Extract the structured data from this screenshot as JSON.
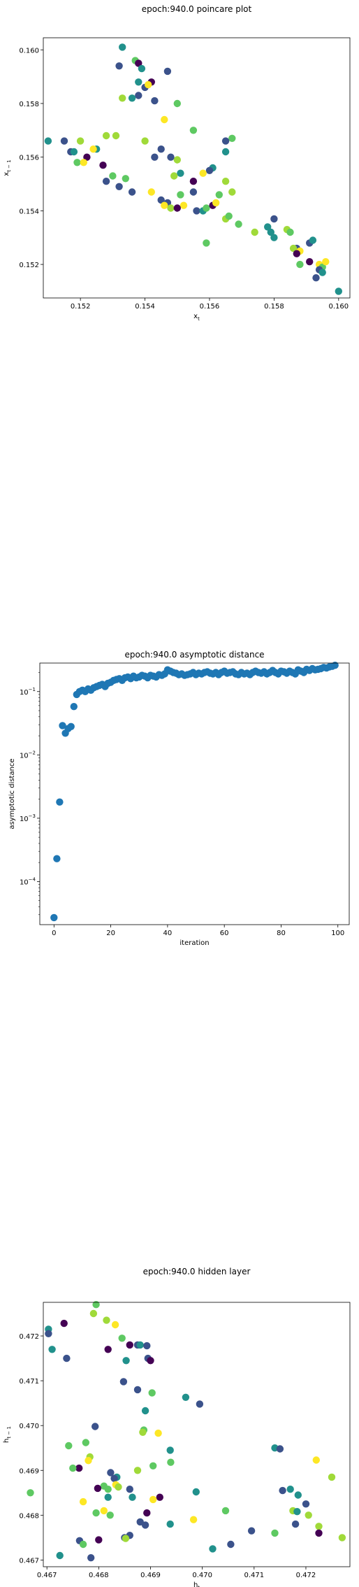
{
  "palette": [
    "#440154",
    "#3b528b",
    "#21918c",
    "#5ec962",
    "#a0da39",
    "#fde725"
  ],
  "pointColor": "#1f77b4",
  "chart_data": [
    {
      "type": "scatter",
      "title": "epoch:940.0 poincare plot",
      "xlabel_base": "x",
      "xlabel_sub": "t",
      "ylabel_base": "x",
      "ylabel_sub": "t − 1",
      "xlim": [
        0.15085,
        0.16035
      ],
      "ylim": [
        0.15075,
        0.16045
      ],
      "xticks": [
        0.152,
        0.154,
        0.156,
        0.158,
        0.16
      ],
      "xtick_labels": [
        "0.152",
        "0.154",
        "0.156",
        "0.158",
        "0.160"
      ],
      "yticks": [
        0.152,
        0.154,
        0.156,
        0.158,
        0.16
      ],
      "ytick_labels": [
        "0.152",
        "0.154",
        "0.156",
        "0.158",
        "0.160"
      ],
      "points": [
        [
          0.1533,
          0.1601,
          2
        ],
        [
          0.1537,
          0.1596,
          3
        ],
        [
          0.1538,
          0.1595,
          0
        ],
        [
          0.1532,
          0.1594,
          1
        ],
        [
          0.1539,
          0.1593,
          2
        ],
        [
          0.1547,
          0.1592,
          1
        ],
        [
          0.1538,
          0.1588,
          2
        ],
        [
          0.1542,
          0.1588,
          0
        ],
        [
          0.154,
          0.1586,
          1
        ],
        [
          0.1541,
          0.1587,
          5
        ],
        [
          0.1538,
          0.1583,
          1
        ],
        [
          0.1536,
          0.1582,
          2
        ],
        [
          0.1543,
          0.1581,
          1
        ],
        [
          0.155,
          0.158,
          3
        ],
        [
          0.1533,
          0.1582,
          4
        ],
        [
          0.1546,
          0.1574,
          5
        ],
        [
          0.1555,
          0.157,
          3
        ],
        [
          0.1567,
          0.1567,
          3
        ],
        [
          0.151,
          0.1566,
          2
        ],
        [
          0.1515,
          0.1566,
          1
        ],
        [
          0.152,
          0.1566,
          4
        ],
        [
          0.154,
          0.1566,
          4
        ],
        [
          0.1565,
          0.1566,
          1
        ],
        [
          0.1545,
          0.1563,
          1
        ],
        [
          0.155,
          0.1559,
          4
        ],
        [
          0.1548,
          0.156,
          1
        ],
        [
          0.1517,
          0.1562,
          1
        ],
        [
          0.1518,
          0.1562,
          2
        ],
        [
          0.1525,
          0.1563,
          2
        ],
        [
          0.1528,
          0.1568,
          4
        ],
        [
          0.1531,
          0.1568,
          4
        ],
        [
          0.1565,
          0.1562,
          2
        ],
        [
          0.1522,
          0.156,
          0
        ],
        [
          0.1519,
          0.1558,
          3
        ],
        [
          0.1521,
          0.1558,
          5
        ],
        [
          0.1524,
          0.1563,
          5
        ],
        [
          0.1527,
          0.1557,
          0
        ],
        [
          0.1543,
          0.156,
          1
        ],
        [
          0.1551,
          0.1554,
          2
        ],
        [
          0.1549,
          0.1553,
          4
        ],
        [
          0.1561,
          0.1556,
          2
        ],
        [
          0.156,
          0.1555,
          1
        ],
        [
          0.1558,
          0.1554,
          5
        ],
        [
          0.1555,
          0.1551,
          0
        ],
        [
          0.1565,
          0.1551,
          4
        ],
        [
          0.1528,
          0.1551,
          1
        ],
        [
          0.153,
          0.1553,
          3
        ],
        [
          0.1534,
          0.1552,
          3
        ],
        [
          0.1532,
          0.1549,
          1
        ],
        [
          0.1536,
          0.1547,
          1
        ],
        [
          0.1542,
          0.1547,
          5
        ],
        [
          0.1551,
          0.1546,
          3
        ],
        [
          0.1555,
          0.1547,
          1
        ],
        [
          0.1567,
          0.1547,
          4
        ],
        [
          0.1547,
          0.1543,
          1
        ],
        [
          0.1545,
          0.1544,
          1
        ],
        [
          0.1546,
          0.1542,
          5
        ],
        [
          0.1548,
          0.1541,
          4
        ],
        [
          0.1552,
          0.1542,
          5
        ],
        [
          0.155,
          0.1541,
          0
        ],
        [
          0.1556,
          0.154,
          1
        ],
        [
          0.1558,
          0.154,
          2
        ],
        [
          0.1559,
          0.1541,
          3
        ],
        [
          0.1561,
          0.1542,
          0
        ],
        [
          0.1562,
          0.1543,
          5
        ],
        [
          0.1563,
          0.1546,
          3
        ],
        [
          0.1565,
          0.1537,
          4
        ],
        [
          0.1566,
          0.1538,
          3
        ],
        [
          0.1569,
          0.1535,
          3
        ],
        [
          0.1574,
          0.1532,
          4
        ],
        [
          0.1578,
          0.1534,
          2
        ],
        [
          0.158,
          0.1537,
          1
        ],
        [
          0.1579,
          0.1532,
          2
        ],
        [
          0.158,
          0.153,
          2
        ],
        [
          0.1584,
          0.1533,
          4
        ],
        [
          0.1585,
          0.1532,
          3
        ],
        [
          0.1587,
          0.1526,
          1
        ],
        [
          0.1586,
          0.1526,
          4
        ],
        [
          0.1588,
          0.1525,
          5
        ],
        [
          0.1587,
          0.1524,
          0
        ],
        [
          0.1591,
          0.1528,
          1
        ],
        [
          0.1592,
          0.1529,
          2
        ],
        [
          0.1559,
          0.1528,
          3
        ],
        [
          0.1591,
          0.1521,
          0
        ],
        [
          0.1588,
          0.152,
          3
        ],
        [
          0.1594,
          0.152,
          5
        ],
        [
          0.1595,
          0.1519,
          3
        ],
        [
          0.1596,
          0.1521,
          5
        ],
        [
          0.1594,
          0.1518,
          1
        ],
        [
          0.1595,
          0.1517,
          2
        ],
        [
          0.1593,
          0.1515,
          1
        ],
        [
          0.16,
          0.151,
          2
        ]
      ]
    },
    {
      "type": "scatter",
      "title": "epoch:940.0 asymptotic distance",
      "xlabel": "iteration",
      "ylabel": "asymptotic distance",
      "yscale": "log",
      "xlim": [
        -5,
        104
      ],
      "ylim_log10": [
        -4.68,
        -0.55
      ],
      "xticks": [
        0,
        20,
        40,
        60,
        80,
        100
      ],
      "xtick_labels": [
        "0",
        "20",
        "40",
        "60",
        "80",
        "100"
      ],
      "yticks_log10": [
        -4,
        -3,
        -2,
        -1
      ],
      "ytick_base": "10",
      "ytick_exps": [
        "−4",
        "−3",
        "−2",
        "−1"
      ],
      "x": [
        0,
        1,
        2,
        3,
        4,
        5,
        6,
        7,
        8,
        9,
        10,
        11,
        12,
        13,
        14,
        15,
        16,
        17,
        18,
        19,
        20,
        21,
        22,
        23,
        24,
        25,
        26,
        27,
        28,
        29,
        30,
        31,
        32,
        33,
        34,
        35,
        36,
        37,
        38,
        39,
        40,
        41,
        42,
        43,
        44,
        45,
        46,
        47,
        48,
        49,
        50,
        51,
        52,
        53,
        54,
        55,
        56,
        57,
        58,
        59,
        60,
        61,
        62,
        63,
        64,
        65,
        66,
        67,
        68,
        69,
        70,
        71,
        72,
        73,
        74,
        75,
        76,
        77,
        78,
        79,
        80,
        81,
        82,
        83,
        84,
        85,
        86,
        87,
        88,
        89,
        90,
        91,
        92,
        93,
        94,
        95,
        96,
        97,
        98,
        99
      ],
      "y": [
        2.7e-05,
        0.00023,
        0.0018,
        0.029,
        0.022,
        0.026,
        0.028,
        0.058,
        0.09,
        0.1,
        0.105,
        0.1,
        0.11,
        0.105,
        0.115,
        0.12,
        0.125,
        0.13,
        0.12,
        0.135,
        0.14,
        0.15,
        0.155,
        0.16,
        0.15,
        0.165,
        0.17,
        0.16,
        0.175,
        0.165,
        0.17,
        0.18,
        0.175,
        0.165,
        0.18,
        0.175,
        0.17,
        0.185,
        0.18,
        0.19,
        0.22,
        0.21,
        0.2,
        0.195,
        0.185,
        0.19,
        0.18,
        0.185,
        0.19,
        0.2,
        0.185,
        0.195,
        0.19,
        0.2,
        0.205,
        0.195,
        0.19,
        0.2,
        0.185,
        0.2,
        0.21,
        0.195,
        0.2,
        0.205,
        0.19,
        0.185,
        0.2,
        0.19,
        0.195,
        0.185,
        0.2,
        0.21,
        0.2,
        0.195,
        0.205,
        0.19,
        0.2,
        0.215,
        0.2,
        0.19,
        0.21,
        0.205,
        0.195,
        0.21,
        0.2,
        0.19,
        0.22,
        0.21,
        0.2,
        0.225,
        0.215,
        0.23,
        0.22,
        0.225,
        0.23,
        0.24,
        0.235,
        0.245,
        0.25,
        0.26
      ]
    },
    {
      "type": "scatter",
      "title": "epoch:940.0 hidden layer",
      "xlabel_base": "h",
      "xlabel_sub": "t",
      "ylabel_base": "h",
      "ylabel_sub": "t − 1",
      "xlim": [
        0.46693,
        0.47285
      ],
      "ylim": [
        0.46685,
        0.47275
      ],
      "xticks": [
        0.467,
        0.468,
        0.469,
        0.47,
        0.471,
        0.472
      ],
      "xtick_labels": [
        "0.467",
        "0.468",
        "0.469",
        "0.470",
        "0.471",
        "0.472"
      ],
      "yticks": [
        0.467,
        0.468,
        0.469,
        0.47,
        0.471,
        0.472
      ],
      "ytick_labels": [
        "0.467",
        "0.468",
        "0.469",
        "0.470",
        "0.471",
        "0.472"
      ],
      "points": [
        [
          0.46795,
          0.4727,
          3
        ],
        [
          0.4679,
          0.4725,
          4
        ],
        [
          0.46815,
          0.47235,
          4
        ],
        [
          0.46832,
          0.47225,
          5
        ],
        [
          0.46703,
          0.47215,
          2
        ],
        [
          0.46703,
          0.47205,
          1
        ],
        [
          0.46733,
          0.47228,
          0
        ],
        [
          0.46845,
          0.47195,
          3
        ],
        [
          0.4686,
          0.4718,
          0
        ],
        [
          0.46875,
          0.4718,
          1
        ],
        [
          0.4688,
          0.4718,
          2
        ],
        [
          0.46893,
          0.47178,
          1
        ],
        [
          0.4671,
          0.4717,
          2
        ],
        [
          0.46818,
          0.4717,
          0
        ],
        [
          0.46895,
          0.4715,
          1
        ],
        [
          0.469,
          0.47145,
          0
        ],
        [
          0.46738,
          0.4715,
          1
        ],
        [
          0.46853,
          0.47145,
          2
        ],
        [
          0.46848,
          0.47098,
          1
        ],
        [
          0.46875,
          0.4708,
          1
        ],
        [
          0.46903,
          0.47073,
          3
        ],
        [
          0.46968,
          0.47063,
          2
        ],
        [
          0.4689,
          0.47033,
          2
        ],
        [
          0.46995,
          0.47048,
          1
        ],
        [
          0.46793,
          0.46998,
          1
        ],
        [
          0.46887,
          0.4699,
          3
        ],
        [
          0.46885,
          0.46985,
          4
        ],
        [
          0.46915,
          0.46983,
          5
        ],
        [
          0.46742,
          0.46955,
          3
        ],
        [
          0.46775,
          0.46962,
          3
        ],
        [
          0.4714,
          0.4695,
          2
        ],
        [
          0.4715,
          0.46948,
          1
        ],
        [
          0.46938,
          0.46945,
          2
        ],
        [
          0.46783,
          0.4693,
          4
        ],
        [
          0.4678,
          0.46922,
          5
        ],
        [
          0.46939,
          0.46918,
          3
        ],
        [
          0.46762,
          0.46905,
          0
        ],
        [
          0.4675,
          0.46905,
          3
        ],
        [
          0.46875,
          0.469,
          4
        ],
        [
          0.46905,
          0.4691,
          3
        ],
        [
          0.46823,
          0.46895,
          1
        ],
        [
          0.46835,
          0.46885,
          2
        ],
        [
          0.4683,
          0.46882,
          1
        ],
        [
          0.4681,
          0.46865,
          3
        ],
        [
          0.46833,
          0.46868,
          5
        ],
        [
          0.46798,
          0.4686,
          0
        ],
        [
          0.46818,
          0.46858,
          3
        ],
        [
          0.46988,
          0.46852,
          2
        ],
        [
          0.46838,
          0.46863,
          4
        ],
        [
          0.4686,
          0.46858,
          1
        ],
        [
          0.4722,
          0.46923,
          5
        ],
        [
          0.4725,
          0.46885,
          4
        ],
        [
          0.46865,
          0.4684,
          2
        ],
        [
          0.46918,
          0.4684,
          0
        ],
        [
          0.46905,
          0.46835,
          5
        ],
        [
          0.4677,
          0.4683,
          5
        ],
        [
          0.46818,
          0.4684,
          2
        ],
        [
          0.472,
          0.46825,
          1
        ],
        [
          0.4717,
          0.46858,
          2
        ],
        [
          0.47155,
          0.46855,
          1
        ],
        [
          0.47185,
          0.46845,
          2
        ],
        [
          0.46668,
          0.4685,
          3
        ],
        [
          0.4681,
          0.4681,
          5
        ],
        [
          0.46795,
          0.46805,
          3
        ],
        [
          0.46822,
          0.468,
          3
        ],
        [
          0.47045,
          0.4681,
          3
        ],
        [
          0.47175,
          0.4681,
          4
        ],
        [
          0.47183,
          0.46808,
          2
        ],
        [
          0.46893,
          0.46805,
          0
        ],
        [
          0.4688,
          0.46785,
          1
        ],
        [
          0.4689,
          0.46778,
          1
        ],
        [
          0.46938,
          0.4678,
          2
        ],
        [
          0.46983,
          0.4679,
          5
        ],
        [
          0.47205,
          0.468,
          4
        ],
        [
          0.4718,
          0.4678,
          1
        ],
        [
          0.47095,
          0.46765,
          1
        ],
        [
          0.4714,
          0.4676,
          3
        ],
        [
          0.47225,
          0.46775,
          4
        ],
        [
          0.47225,
          0.4676,
          0
        ],
        [
          0.4686,
          0.46755,
          1
        ],
        [
          0.4685,
          0.4675,
          1
        ],
        [
          0.46763,
          0.46743,
          1
        ],
        [
          0.46852,
          0.46748,
          4
        ],
        [
          0.468,
          0.46745,
          0
        ],
        [
          0.4727,
          0.4675,
          4
        ],
        [
          0.47055,
          0.46735,
          1
        ],
        [
          0.4702,
          0.46725,
          2
        ],
        [
          0.46725,
          0.4671,
          2
        ],
        [
          0.46785,
          0.46705,
          1
        ],
        [
          0.4677,
          0.46735,
          3
        ]
      ]
    }
  ]
}
